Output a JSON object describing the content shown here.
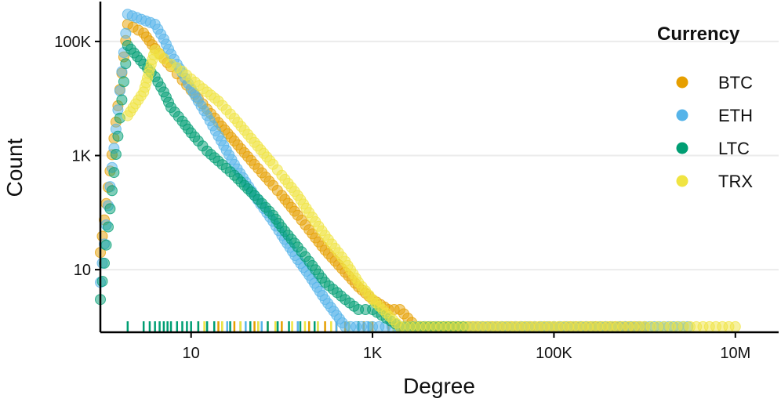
{
  "chart_data": {
    "type": "scatter",
    "xlabel": "Degree",
    "ylabel": "Count",
    "x_scale": "log10",
    "y_scale": "log10",
    "xlim": [
      1,
      30000000
    ],
    "ylim": [
      0.8,
      500000
    ],
    "x_ticks": [
      {
        "value": 10,
        "label": "10"
      },
      {
        "value": 1000,
        "label": "1K"
      },
      {
        "value": 100000,
        "label": "100K"
      },
      {
        "value": 10000000,
        "label": "10M"
      }
    ],
    "y_ticks": [
      {
        "value": 10,
        "label": "10"
      },
      {
        "value": 1000,
        "label": "1K"
      },
      {
        "value": 100000,
        "label": "100K"
      }
    ],
    "grid": "horizontal major only",
    "legend": {
      "title": "Currency",
      "position": "right"
    },
    "point_alpha": 0.5,
    "series": [
      {
        "name": "BTC",
        "color": "#E69F00",
        "points": [
          [
            1,
            20
          ],
          [
            2,
            200000
          ],
          [
            3,
            140000
          ],
          [
            4,
            75000
          ],
          [
            5,
            50000
          ],
          [
            6,
            36000
          ],
          [
            7,
            27000
          ],
          [
            8,
            21000
          ],
          [
            10,
            14000
          ],
          [
            12,
            10000
          ],
          [
            15,
            6500
          ],
          [
            20,
            3800
          ],
          [
            30,
            1800
          ],
          [
            50,
            700
          ],
          [
            80,
            300
          ],
          [
            100,
            200
          ],
          [
            150,
            90
          ],
          [
            200,
            50
          ],
          [
            300,
            22
          ],
          [
            500,
            9
          ],
          [
            700,
            5
          ],
          [
            1000,
            3
          ],
          [
            1500,
            2
          ],
          [
            2000,
            2
          ],
          [
            3000,
            1
          ],
          [
            5000,
            1
          ],
          [
            10000,
            1
          ],
          [
            30000,
            1
          ],
          [
            100000,
            1
          ],
          [
            200000,
            1
          ],
          [
            1000000,
            1
          ]
        ],
        "rug": [
          12,
          20,
          30,
          50,
          70,
          100,
          150,
          200,
          300,
          400,
          500,
          700,
          800,
          1000,
          1500,
          2000,
          3000,
          4500,
          6500
        ]
      },
      {
        "name": "ETH",
        "color": "#56B4E9",
        "points": [
          [
            1,
            6
          ],
          [
            2,
            300000
          ],
          [
            4,
            200000
          ],
          [
            5,
            110000
          ],
          [
            6,
            60000
          ],
          [
            7,
            40000
          ],
          [
            8,
            28000
          ],
          [
            10,
            15000
          ],
          [
            12,
            9000
          ],
          [
            15,
            5000
          ],
          [
            20,
            2200
          ],
          [
            30,
            700
          ],
          [
            50,
            200
          ],
          [
            80,
            70
          ],
          [
            100,
            40
          ],
          [
            150,
            15
          ],
          [
            200,
            8
          ],
          [
            300,
            3
          ],
          [
            500,
            1
          ],
          [
            1000,
            1
          ],
          [
            10000,
            1
          ],
          [
            100000,
            1
          ],
          [
            1000000,
            1
          ],
          [
            3000000,
            1
          ]
        ],
        "rug": [
          15,
          25,
          40,
          60,
          90,
          150,
          250,
          400,
          900,
          4000
        ]
      },
      {
        "name": "LTC",
        "color": "#009E73",
        "points": [
          [
            1,
            3
          ],
          [
            2,
            85000
          ],
          [
            3,
            40000
          ],
          [
            4,
            24000
          ],
          [
            5,
            13000
          ],
          [
            6,
            7000
          ],
          [
            8,
            4000
          ],
          [
            10,
            2500
          ],
          [
            12,
            1800
          ],
          [
            15,
            1200
          ],
          [
            20,
            800
          ],
          [
            30,
            450
          ],
          [
            50,
            200
          ],
          [
            80,
            90
          ],
          [
            100,
            55
          ],
          [
            150,
            25
          ],
          [
            200,
            14
          ],
          [
            300,
            6
          ],
          [
            500,
            3
          ],
          [
            700,
            2
          ],
          [
            1000,
            2
          ],
          [
            2000,
            1
          ],
          [
            10000,
            1
          ]
        ],
        "rug": [
          2,
          3,
          3.5,
          4,
          4.5,
          5,
          5.5,
          6,
          7,
          8,
          9,
          10,
          12,
          15,
          18,
          22,
          27,
          35,
          45,
          55,
          70,
          90,
          120,
          160,
          230,
          700,
          2800,
          4400,
          280000
        ]
      },
      {
        "name": "TRX",
        "color": "#F0E442",
        "points": [
          [
            2,
            5000
          ],
          [
            3,
            13000
          ],
          [
            4,
            70000
          ],
          [
            5,
            50000
          ],
          [
            6,
            40000
          ],
          [
            8,
            30000
          ],
          [
            10,
            22000
          ],
          [
            15,
            13000
          ],
          [
            20,
            9000
          ],
          [
            30,
            4500
          ],
          [
            50,
            1700
          ],
          [
            80,
            700
          ],
          [
            100,
            450
          ],
          [
            150,
            200
          ],
          [
            200,
            100
          ],
          [
            300,
            40
          ],
          [
            500,
            14
          ],
          [
            700,
            6
          ],
          [
            1000,
            3
          ],
          [
            2000,
            1
          ],
          [
            5000,
            1
          ],
          [
            20000,
            1
          ],
          [
            100000,
            1
          ],
          [
            500000,
            1
          ],
          [
            1000000,
            1
          ],
          [
            10000000,
            1
          ]
        ],
        "rug": [
          14,
          22,
          35,
          55,
          85,
          130,
          180,
          250,
          350,
          550,
          950,
          1700
        ]
      }
    ]
  }
}
